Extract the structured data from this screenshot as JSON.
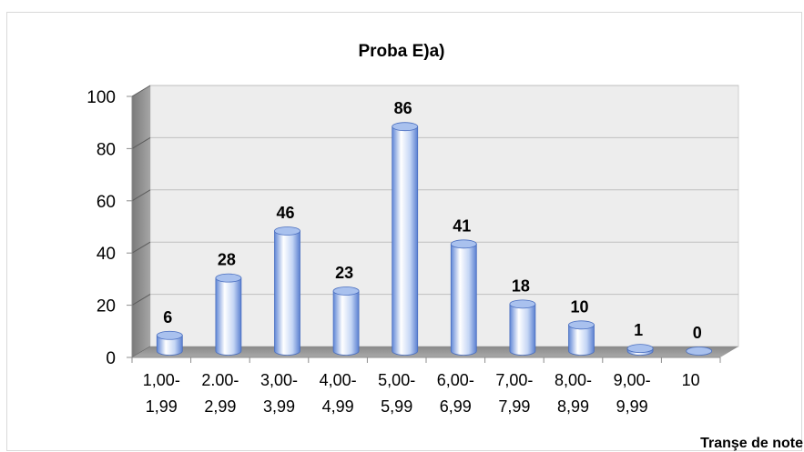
{
  "chart_data": {
    "type": "bar",
    "title": "Proba E)a)",
    "xlabel": "Tranşe de note",
    "ylabel": "",
    "ylim": [
      0,
      100
    ],
    "yticks": [
      0,
      20,
      40,
      60,
      80,
      100
    ],
    "grid": true,
    "legend": "none",
    "bar_color": "#8fb0e8",
    "categories": [
      [
        "1,00-",
        "1,99"
      ],
      [
        "2.00-",
        "2,99"
      ],
      [
        "3,00-",
        "3,99"
      ],
      [
        "4,00-",
        "4,99"
      ],
      [
        "5,00-",
        "5,99"
      ],
      [
        "6,00-",
        "6,99"
      ],
      [
        "7,00-",
        "7,99"
      ],
      [
        "8,00-",
        "8,99"
      ],
      [
        "9,00-",
        "9,99"
      ],
      [
        "10",
        ""
      ]
    ],
    "values": [
      6,
      28,
      46,
      23,
      86,
      41,
      18,
      10,
      1,
      0
    ]
  }
}
